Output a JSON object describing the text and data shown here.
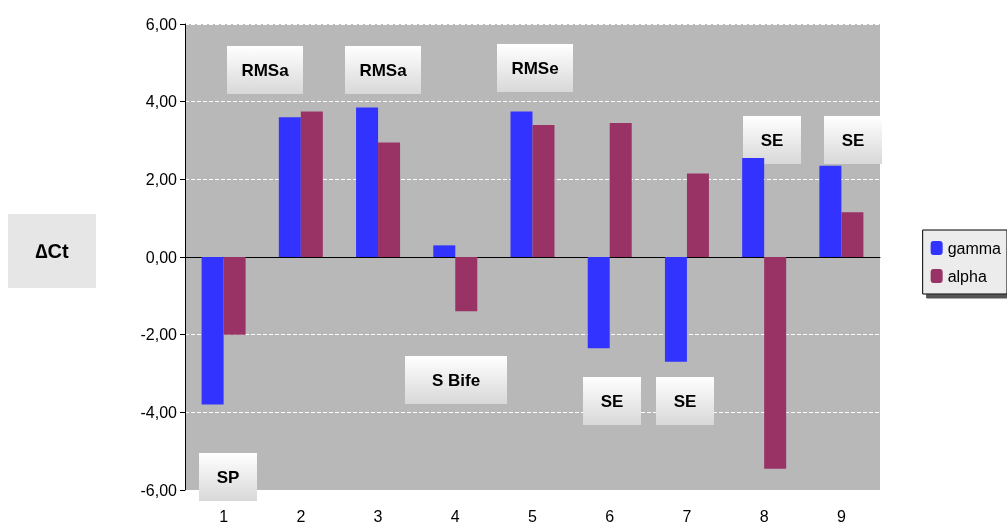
{
  "chart_data": {
    "type": "bar",
    "ylabel": "∆Ct",
    "categories": [
      "1",
      "2",
      "3",
      "4",
      "5",
      "6",
      "7",
      "8",
      "9"
    ],
    "series": [
      {
        "name": "gamma",
        "color": "#3333ff",
        "values": [
          -3.8,
          3.6,
          3.85,
          0.3,
          3.75,
          -2.35,
          -2.7,
          2.55,
          2.35
        ]
      },
      {
        "name": "alpha",
        "color": "#993366",
        "values": [
          -2.0,
          3.75,
          2.95,
          -1.4,
          3.4,
          3.45,
          2.15,
          -5.45,
          1.15
        ]
      }
    ],
    "ylim": [
      -6,
      6
    ],
    "yticks": [
      {
        "value": -6,
        "label": "-6,00"
      },
      {
        "value": -4,
        "label": "-4,00"
      },
      {
        "value": -2,
        "label": "-2,00"
      },
      {
        "value": 0,
        "label": "0,00"
      },
      {
        "value": 2,
        "label": "2,00"
      },
      {
        "value": 4,
        "label": "4,00"
      },
      {
        "value": 6,
        "label": "6,00"
      }
    ],
    "grid": "y",
    "legend": "right",
    "annotations": [
      "RMSa",
      "RMSa",
      "RMSe",
      "SE",
      "SE",
      "SP",
      "S Bife",
      "SE",
      "SE"
    ]
  }
}
